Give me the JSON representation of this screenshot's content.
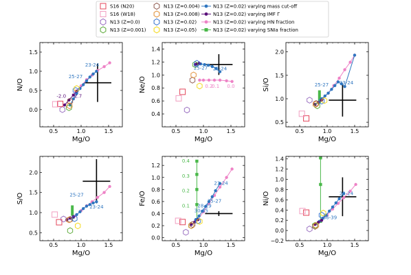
{
  "colors": {
    "s16": "#e3455a",
    "s16w": "#f19ec0",
    "z0": "#9467bd",
    "z001": "#55a630",
    "z004": "#8c564b",
    "z008": "#e08a2c",
    "z02": "#2f6fcc",
    "z05": "#f2d60d",
    "mass": "#2f76c0",
    "imf": "#5a0f7a",
    "hn": "#ee82c6",
    "snia": "#4ab84a",
    "obs": "#000000"
  },
  "legend": [
    {
      "label": "S16 (N20)",
      "marker": "square",
      "color": "s16"
    },
    {
      "label": "S16 (W18)",
      "marker": "square",
      "color": "s16w"
    },
    {
      "label": "N13 (Z=0.0)",
      "marker": "hexagon",
      "color": "z0"
    },
    {
      "label": "N13 (Z=0.001)",
      "marker": "hexagon",
      "color": "z001"
    },
    {
      "label": "N13 (Z=0.004)",
      "marker": "hexagon",
      "color": "z004"
    },
    {
      "label": "N13 (Z=0.008)",
      "marker": "hexagon",
      "color": "z008"
    },
    {
      "label": "N13 (Z=0.02)",
      "marker": "hexagon",
      "color": "z02"
    },
    {
      "label": "N13 (Z=0.05)",
      "marker": "hexagon",
      "color": "z05"
    },
    {
      "label": "N13 (Z=0.02) varying mass cut-off",
      "marker": "line-dot",
      "color": "mass"
    },
    {
      "label": "N13 (Z=0.02) varying IMF Γ",
      "marker": "line-dot",
      "color": "imf"
    },
    {
      "label": "N13 (Z=0.02) varying HN fraction",
      "marker": "line-dot",
      "color": "hn"
    },
    {
      "label": "N13 (Z=0.02) varying SNIa fraction",
      "marker": "line-square",
      "color": "snia"
    }
  ],
  "chart_data": [
    {
      "type": "scatter",
      "xlabel": "Mg/O",
      "ylabel": "N/O",
      "xlim": [
        0.25,
        1.75
      ],
      "ylim": [
        -0.45,
        1.75
      ],
      "xticks": [
        0.5,
        1.0,
        1.5
      ],
      "yticks": [
        0.0,
        0.5,
        1.0,
        1.5
      ],
      "ytick_labels": [
        "0.0",
        "0.5",
        "1.0",
        "1.5"
      ],
      "s16": [
        {
          "x": 0.62,
          "y": 0.15
        }
      ],
      "s16w": [
        {
          "x": 0.53,
          "y": 0.14
        }
      ],
      "hex": [
        {
          "z": "z0",
          "x": 0.66,
          "y": 0.0
        },
        {
          "z": "z001",
          "x": 0.78,
          "y": 0.05
        },
        {
          "z": "z004",
          "x": 0.8,
          "y": 0.22
        },
        {
          "z": "z008",
          "x": 0.79,
          "y": 0.1
        },
        {
          "z": "z02",
          "x": 0.9,
          "y": 0.5
        },
        {
          "z": "z05",
          "x": 0.92,
          "y": 0.55
        }
      ],
      "mass": {
        "x": [
          0.8,
          0.86,
          0.92,
          0.98,
          1.04,
          1.1,
          1.16,
          1.22,
          1.28
        ],
        "y": [
          0.12,
          0.28,
          0.42,
          0.55,
          0.65,
          0.75,
          0.85,
          0.93,
          1.0
        ]
      },
      "imf": {
        "x": [
          0.7,
          0.78,
          0.86,
          0.92
        ],
        "y": [
          0.12,
          0.25,
          0.38,
          0.48
        ]
      },
      "hn": {
        "x": [
          0.9,
          1.0,
          1.1,
          1.2,
          1.3,
          1.42,
          1.52
        ],
        "y": [
          0.48,
          0.62,
          0.78,
          0.9,
          1.02,
          1.12,
          1.22
        ]
      },
      "snia": null,
      "obs": {
        "x": 1.3,
        "y": 0.7,
        "xerr": 0.25,
        "yerr": 0.5
      },
      "annotations": [
        {
          "text": "23-24",
          "x": 1.2,
          "y": 1.12,
          "color": "mass"
        },
        {
          "text": "25-27",
          "x": 0.9,
          "y": 0.82,
          "color": "mass"
        },
        {
          "text": "-2.0",
          "x": 0.64,
          "y": 0.31,
          "color": "imf"
        },
        {
          "text": "-2.7",
          "x": 0.93,
          "y": 0.31,
          "color": "imf"
        }
      ]
    },
    {
      "type": "scatter",
      "xlabel": "Mg/O",
      "ylabel": "Ne/O",
      "xlim": [
        0.25,
        1.75
      ],
      "ylim": [
        0.2,
        1.5
      ],
      "xticks": [
        0.5,
        1.0,
        1.5
      ],
      "yticks": [
        0.4,
        0.6,
        0.8,
        1.0,
        1.2,
        1.4
      ],
      "ytick_labels": [
        "0.4",
        "0.6",
        "0.8",
        "1.0",
        "1.2",
        "1.4"
      ],
      "s16": [
        {
          "x": 0.62,
          "y": 0.74
        }
      ],
      "s16w": [
        {
          "x": 0.55,
          "y": 0.64
        }
      ],
      "hex": [
        {
          "z": "z0",
          "x": 0.7,
          "y": 0.46
        },
        {
          "z": "z001",
          "x": 0.85,
          "y": 1.16
        },
        {
          "z": "z004",
          "x": 0.8,
          "y": 0.92
        },
        {
          "z": "z008",
          "x": 0.82,
          "y": 1.0
        },
        {
          "z": "z02",
          "x": 0.88,
          "y": 1.18
        },
        {
          "z": "z05",
          "x": 0.93,
          "y": 0.83
        }
      ],
      "mass": {
        "x": [
          0.88,
          0.95,
          1.02,
          1.09,
          1.16,
          1.23,
          1.3
        ],
        "y": [
          1.17,
          1.17,
          1.16,
          1.15,
          1.13,
          1.1,
          1.05
        ]
      },
      "imf": {
        "x": [
          0.85,
          0.88,
          0.92
        ],
        "y": [
          1.16,
          1.17,
          1.18
        ]
      },
      "hn": {
        "x": [
          0.93,
          1.0,
          1.1,
          1.2,
          1.3,
          1.42,
          1.52
        ],
        "y": [
          0.92,
          0.92,
          0.92,
          0.92,
          0.92,
          0.91,
          0.9
        ]
      },
      "snia": null,
      "obs": {
        "x": 1.28,
        "y": 1.16,
        "xerr": 0.25,
        "yerr": 0.16
      },
      "annotations": [
        {
          "text": "23-24",
          "x": 1.3,
          "y": 1.07,
          "color": "mass"
        },
        {
          "text": "25-27",
          "x": 0.95,
          "y": 1.08,
          "color": "mass"
        },
        {
          "text": "0.2",
          "x": 1.1,
          "y": 0.8,
          "color": "hn"
        },
        {
          "text": "0.1",
          "x": 1.22,
          "y": 0.8,
          "color": "hn"
        },
        {
          "text": "0.0",
          "x": 1.5,
          "y": 0.8,
          "color": "hn"
        }
      ]
    },
    {
      "type": "scatter",
      "xlabel": "Mg/O",
      "ylabel": "Si/O",
      "xlim": [
        0.25,
        1.75
      ],
      "ylim": [
        0.4,
        2.2
      ],
      "xticks": [
        0.5,
        1.0,
        1.5
      ],
      "yticks": [
        0.5,
        1.0,
        1.5,
        2.0
      ],
      "ytick_labels": [
        "0.5",
        "1.0",
        "1.5",
        "2.0"
      ],
      "s16": [
        {
          "x": 0.62,
          "y": 0.58
        }
      ],
      "s16w": [
        {
          "x": 0.54,
          "y": 0.68
        }
      ],
      "hex": [
        {
          "z": "z0",
          "x": 0.68,
          "y": 0.97
        },
        {
          "z": "z001",
          "x": 0.82,
          "y": 0.85
        },
        {
          "z": "z004",
          "x": 0.8,
          "y": 0.9
        },
        {
          "z": "z008",
          "x": 0.79,
          "y": 0.88
        },
        {
          "z": "z02",
          "x": 0.9,
          "y": 0.95
        },
        {
          "z": "z05",
          "x": 0.95,
          "y": 0.96
        }
      ],
      "mass": {
        "x": [
          0.9,
          0.96,
          1.02,
          1.08,
          1.14,
          1.2,
          1.26,
          1.32,
          1.5
        ],
        "y": [
          1.0,
          1.06,
          1.12,
          1.2,
          1.28,
          1.36,
          1.32,
          1.26,
          1.93
        ]
      },
      "imf": {
        "x": [
          0.78,
          0.84,
          0.9
        ],
        "y": [
          0.88,
          0.92,
          0.97
        ]
      },
      "hn": {
        "x": [
          0.92,
          1.02,
          1.12,
          1.22,
          1.32,
          1.42,
          1.5
        ],
        "y": [
          1.0,
          1.12,
          1.28,
          1.44,
          1.62,
          1.78,
          1.93
        ]
      },
      "snia": {
        "x": [
          0.86,
          0.86,
          0.86
        ],
        "y": [
          0.9,
          1.05,
          1.18
        ],
        "bar": true
      },
      "obs": {
        "x": 1.28,
        "y": 0.97,
        "xerr": 0.25,
        "yerr": 0.35
      },
      "annotations": [
        {
          "text": "23-24",
          "x": 1.35,
          "y": 1.31,
          "color": "mass"
        },
        {
          "text": "25-27",
          "x": 0.9,
          "y": 1.26,
          "color": "mass"
        }
      ]
    },
    {
      "type": "scatter",
      "xlabel": "Mg/O",
      "ylabel": "S/O",
      "xlim": [
        0.25,
        1.75
      ],
      "ylim": [
        0.3,
        2.4
      ],
      "xticks": [
        0.5,
        1.0,
        1.5
      ],
      "yticks": [
        0.5,
        1.0,
        1.5,
        2.0
      ],
      "ytick_labels": [
        "0.5",
        "1.0",
        "1.5",
        "2.0"
      ],
      "s16": [
        {
          "x": 0.6,
          "y": 0.76
        }
      ],
      "s16w": [
        {
          "x": 0.52,
          "y": 0.95
        }
      ],
      "hex": [
        {
          "z": "z0",
          "x": 0.68,
          "y": 0.84
        },
        {
          "z": "z001",
          "x": 0.8,
          "y": 0.55
        },
        {
          "z": "z004",
          "x": 0.8,
          "y": 0.83
        },
        {
          "z": "z008",
          "x": 0.78,
          "y": 0.82
        },
        {
          "z": "z02",
          "x": 0.88,
          "y": 0.85
        },
        {
          "z": "z05",
          "x": 0.94,
          "y": 0.67
        }
      ],
      "mass": {
        "x": [
          0.86,
          0.92,
          0.98,
          1.04,
          1.1,
          1.16,
          1.22,
          1.28
        ],
        "y": [
          0.88,
          0.95,
          1.02,
          1.1,
          1.16,
          1.2,
          1.24,
          1.27
        ]
      },
      "imf": {
        "x": [
          0.74,
          0.8,
          0.86
        ],
        "y": [
          0.82,
          0.86,
          0.9
        ]
      },
      "hn": {
        "x": [
          0.9,
          1.0,
          1.1,
          1.2,
          1.3,
          1.42,
          1.52
        ],
        "y": [
          0.92,
          1.05,
          1.17,
          1.27,
          1.38,
          1.5,
          1.65
        ]
      },
      "snia": {
        "x": [
          0.84,
          0.84,
          0.84
        ],
        "y": [
          0.92,
          1.05,
          1.18
        ],
        "bar": true
      },
      "obs": {
        "x": 1.28,
        "y": 1.78,
        "xerr": 0.25,
        "yerr": 0.55
      },
      "annotations": [
        {
          "text": "23-24",
          "x": 1.28,
          "y": 1.1,
          "color": "mass"
        },
        {
          "text": "25-27",
          "x": 0.92,
          "y": 1.4,
          "color": "mass"
        }
      ]
    },
    {
      "type": "scatter",
      "xlabel": "Mg/O",
      "ylabel": "Fe/O",
      "xlim": [
        0.25,
        1.75
      ],
      "ylim": [
        -0.05,
        1.35
      ],
      "xticks": [
        0.5,
        1.0,
        1.5
      ],
      "yticks": [
        0.0,
        0.2,
        0.4,
        0.6,
        0.8,
        1.0,
        1.2
      ],
      "ytick_labels": [
        "0.0",
        "0.2",
        "0.4",
        "0.6",
        "0.8",
        "1.0",
        "1.2"
      ],
      "s16": [
        {
          "x": 0.62,
          "y": 0.26
        }
      ],
      "s16w": [
        {
          "x": 0.54,
          "y": 0.28
        }
      ],
      "hex": [
        {
          "z": "z0",
          "x": 0.68,
          "y": 0.09
        },
        {
          "z": "z001",
          "x": 0.78,
          "y": 0.2
        },
        {
          "z": "z004",
          "x": 0.8,
          "y": 0.22
        },
        {
          "z": "z008",
          "x": 0.78,
          "y": 0.2
        },
        {
          "z": "z02",
          "x": 0.9,
          "y": 0.28
        },
        {
          "z": "z05",
          "x": 0.93,
          "y": 0.27
        }
      ],
      "mass": {
        "x": [
          0.86,
          0.92,
          0.98,
          1.04,
          1.1,
          1.16,
          1.22,
          1.3
        ],
        "y": [
          0.3,
          0.36,
          0.44,
          0.52,
          0.6,
          0.68,
          0.78,
          0.9
        ]
      },
      "imf": {
        "x": [
          0.78,
          0.84,
          0.9
        ],
        "y": [
          0.22,
          0.26,
          0.3
        ]
      },
      "hn": {
        "x": [
          0.9,
          1.0,
          1.1,
          1.2,
          1.3,
          1.42,
          1.52
        ],
        "y": [
          0.3,
          0.43,
          0.57,
          0.7,
          0.84,
          1.0,
          1.14
        ]
      },
      "snia": {
        "x": [
          0.88,
          0.88,
          0.88,
          0.88,
          0.88
        ],
        "y": [
          0.3,
          0.55,
          0.8,
          1.05,
          1.27
        ],
        "bar": false
      },
      "obs": {
        "x": 1.28,
        "y": 0.4,
        "xerr": 0.25,
        "yerr": 0.04
      },
      "annotations": [
        {
          "text": "23-24",
          "x": 1.32,
          "y": 0.88,
          "color": "mass"
        },
        {
          "text": "25-27",
          "x": 1.2,
          "y": 0.58,
          "color": "mass"
        },
        {
          "text": "28-29",
          "x": 1.02,
          "y": 0.5,
          "color": "mass"
        },
        {
          "text": "30-35",
          "x": 0.96,
          "y": 0.42,
          "color": "mass"
        },
        {
          "text": "0.4",
          "x": 0.68,
          "y": 1.25,
          "color": "snia"
        },
        {
          "text": "0.3",
          "x": 0.68,
          "y": 1.0,
          "color": "snia"
        },
        {
          "text": "0.2",
          "x": 0.68,
          "y": 0.75,
          "color": "snia"
        },
        {
          "text": "0.1",
          "x": 0.68,
          "y": 0.5,
          "color": "snia"
        }
      ]
    },
    {
      "type": "scatter",
      "xlabel": "Mg/O",
      "ylabel": "Ni/O",
      "xlim": [
        0.25,
        1.75
      ],
      "ylim": [
        -0.2,
        1.45
      ],
      "xticks": [
        0.5,
        1.0,
        1.5
      ],
      "yticks": [
        -0.2,
        0.0,
        0.2,
        0.4,
        0.6,
        0.8,
        1.0,
        1.2,
        1.4
      ],
      "ytick_labels": [
        "−0.2",
        "0.0",
        "0.2",
        "0.4",
        "0.6",
        "0.8",
        "1.0",
        "1.2",
        "1.4"
      ],
      "s16": [
        {
          "x": 0.62,
          "y": 0.35
        }
      ],
      "s16w": [
        {
          "x": 0.55,
          "y": 0.38
        }
      ],
      "hex": [
        {
          "z": "z0",
          "x": 0.68,
          "y": 0.03
        },
        {
          "z": "z001",
          "x": 0.78,
          "y": 0.1
        },
        {
          "z": "z004",
          "x": 0.78,
          "y": 0.08
        },
        {
          "z": "z008",
          "x": 0.8,
          "y": 0.1
        },
        {
          "z": "z02",
          "x": 0.9,
          "y": 0.3
        },
        {
          "z": "z05",
          "x": 0.93,
          "y": 0.34
        }
      ],
      "mass": {
        "x": [
          0.86,
          0.92,
          0.98,
          1.04,
          1.1,
          1.16,
          1.22,
          1.3
        ],
        "y": [
          0.18,
          0.24,
          0.3,
          0.38,
          0.46,
          0.54,
          0.62,
          0.72
        ]
      },
      "imf": {
        "x": [
          0.78,
          0.84,
          0.9
        ],
        "y": [
          0.12,
          0.16,
          0.2
        ]
      },
      "hn": {
        "x": [
          0.9,
          1.0,
          1.1,
          1.2,
          1.3,
          1.42,
          1.52
        ],
        "y": [
          0.2,
          0.3,
          0.42,
          0.53,
          0.64,
          0.77,
          0.9
        ]
      },
      "snia": {
        "x": [
          0.88,
          0.88,
          0.88
        ],
        "y": [
          0.18,
          0.9,
          1.42
        ],
        "bar": false
      },
      "obs": {
        "x": 1.28,
        "y": 0.66,
        "xerr": 0.25,
        "yerr": 0.38
      },
      "annotations": [
        {
          "text": "23-24",
          "x": 1.35,
          "y": 0.69,
          "color": "mass"
        },
        {
          "text": "36-39",
          "x": 1.05,
          "y": 0.22,
          "color": "mass"
        }
      ]
    }
  ]
}
